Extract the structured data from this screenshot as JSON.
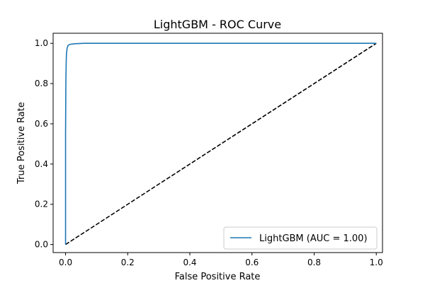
{
  "chart_data": {
    "type": "line",
    "title": "LightGBM - ROC Curve",
    "xlabel": "False Positive Rate",
    "ylabel": "True Positive Rate",
    "xlim": [
      -0.04,
      1.02
    ],
    "ylim": [
      -0.04,
      1.05
    ],
    "xticks": [
      0.0,
      0.2,
      0.4,
      0.6,
      0.8,
      1.0
    ],
    "yticks": [
      0.0,
      0.2,
      0.4,
      0.6,
      0.8,
      1.0
    ],
    "xtick_labels": [
      "0.0",
      "0.2",
      "0.4",
      "0.6",
      "0.8",
      "1.0"
    ],
    "ytick_labels": [
      "0.0",
      "0.2",
      "0.4",
      "0.6",
      "0.8",
      "1.0"
    ],
    "grid": false,
    "legend_position": "lower-right",
    "series": [
      {
        "name": "LightGBM (AUC = 1.00)",
        "color": "#1f77b4",
        "style": "solid",
        "points": [
          [
            0.0,
            0.0
          ],
          [
            0.0,
            0.55
          ],
          [
            0.001,
            0.8
          ],
          [
            0.002,
            0.9
          ],
          [
            0.003,
            0.95
          ],
          [
            0.005,
            0.975
          ],
          [
            0.008,
            0.99
          ],
          [
            0.015,
            0.995
          ],
          [
            0.03,
            0.998
          ],
          [
            0.06,
            1.0
          ],
          [
            1.0,
            1.0
          ]
        ]
      },
      {
        "color": "#000000",
        "style": "dashed",
        "points": [
          [
            0.0,
            0.0
          ],
          [
            1.0,
            1.0
          ]
        ]
      }
    ]
  }
}
